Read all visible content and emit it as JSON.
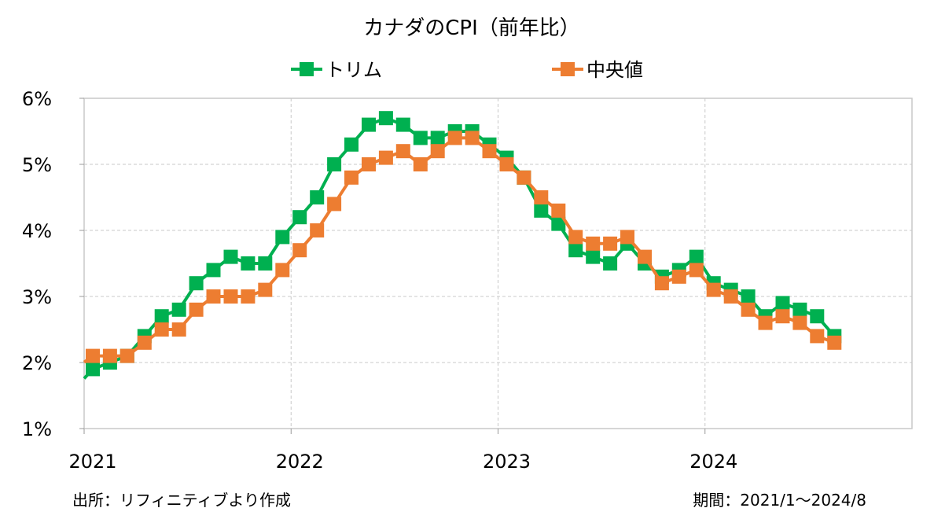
{
  "chart_data": {
    "type": "line",
    "title": "カナダのCPI（前年比）",
    "xlabel": "",
    "ylabel": "",
    "x": [
      "2021/1",
      "2021/2",
      "2021/3",
      "2021/4",
      "2021/5",
      "2021/6",
      "2021/7",
      "2021/8",
      "2021/9",
      "2021/10",
      "2021/11",
      "2021/12",
      "2022/1",
      "2022/2",
      "2022/3",
      "2022/4",
      "2022/5",
      "2022/6",
      "2022/7",
      "2022/8",
      "2022/9",
      "2022/10",
      "2022/11",
      "2022/12",
      "2023/1",
      "2023/2",
      "2023/3",
      "2023/4",
      "2023/5",
      "2023/6",
      "2023/7",
      "2023/8",
      "2023/9",
      "2023/10",
      "2023/11",
      "2023/12",
      "2024/1",
      "2024/2",
      "2024/3",
      "2024/4",
      "2024/5",
      "2024/6",
      "2024/7",
      "2024/8"
    ],
    "xticks": [
      "2021",
      "2022",
      "2023",
      "2024"
    ],
    "yticks": [
      "1%",
      "2%",
      "3%",
      "4%",
      "5%",
      "6%"
    ],
    "ylim": [
      1,
      6
    ],
    "grid": true,
    "legend_position": "top-center",
    "series": [
      {
        "name": "トリム",
        "color": "#00B050",
        "values": [
          1.9,
          2.0,
          2.1,
          2.4,
          2.7,
          2.8,
          3.2,
          3.4,
          3.6,
          3.5,
          3.5,
          3.9,
          4.2,
          4.5,
          5.0,
          5.3,
          5.6,
          5.7,
          5.6,
          5.4,
          5.4,
          5.5,
          5.5,
          5.3,
          5.1,
          4.8,
          4.3,
          4.1,
          3.7,
          3.6,
          3.5,
          3.8,
          3.5,
          3.3,
          3.4,
          3.6,
          3.2,
          3.1,
          3.0,
          2.7,
          2.9,
          2.8,
          2.7,
          2.4
        ]
      },
      {
        "name": "中央値",
        "color": "#ED7D31",
        "values": [
          2.1,
          2.1,
          2.1,
          2.3,
          2.5,
          2.5,
          2.8,
          3.0,
          3.0,
          3.0,
          3.1,
          3.4,
          3.7,
          4.0,
          4.4,
          4.8,
          5.0,
          5.1,
          5.2,
          5.0,
          5.2,
          5.4,
          5.4,
          5.2,
          5.0,
          4.8,
          4.5,
          4.3,
          3.9,
          3.8,
          3.8,
          3.9,
          3.6,
          3.2,
          3.3,
          3.4,
          3.1,
          3.0,
          2.8,
          2.6,
          2.7,
          2.6,
          2.4,
          2.3
        ]
      }
    ]
  },
  "footer": {
    "source": "出所：リフィニティブより作成",
    "period": "期間：2021/1～2024/8"
  }
}
